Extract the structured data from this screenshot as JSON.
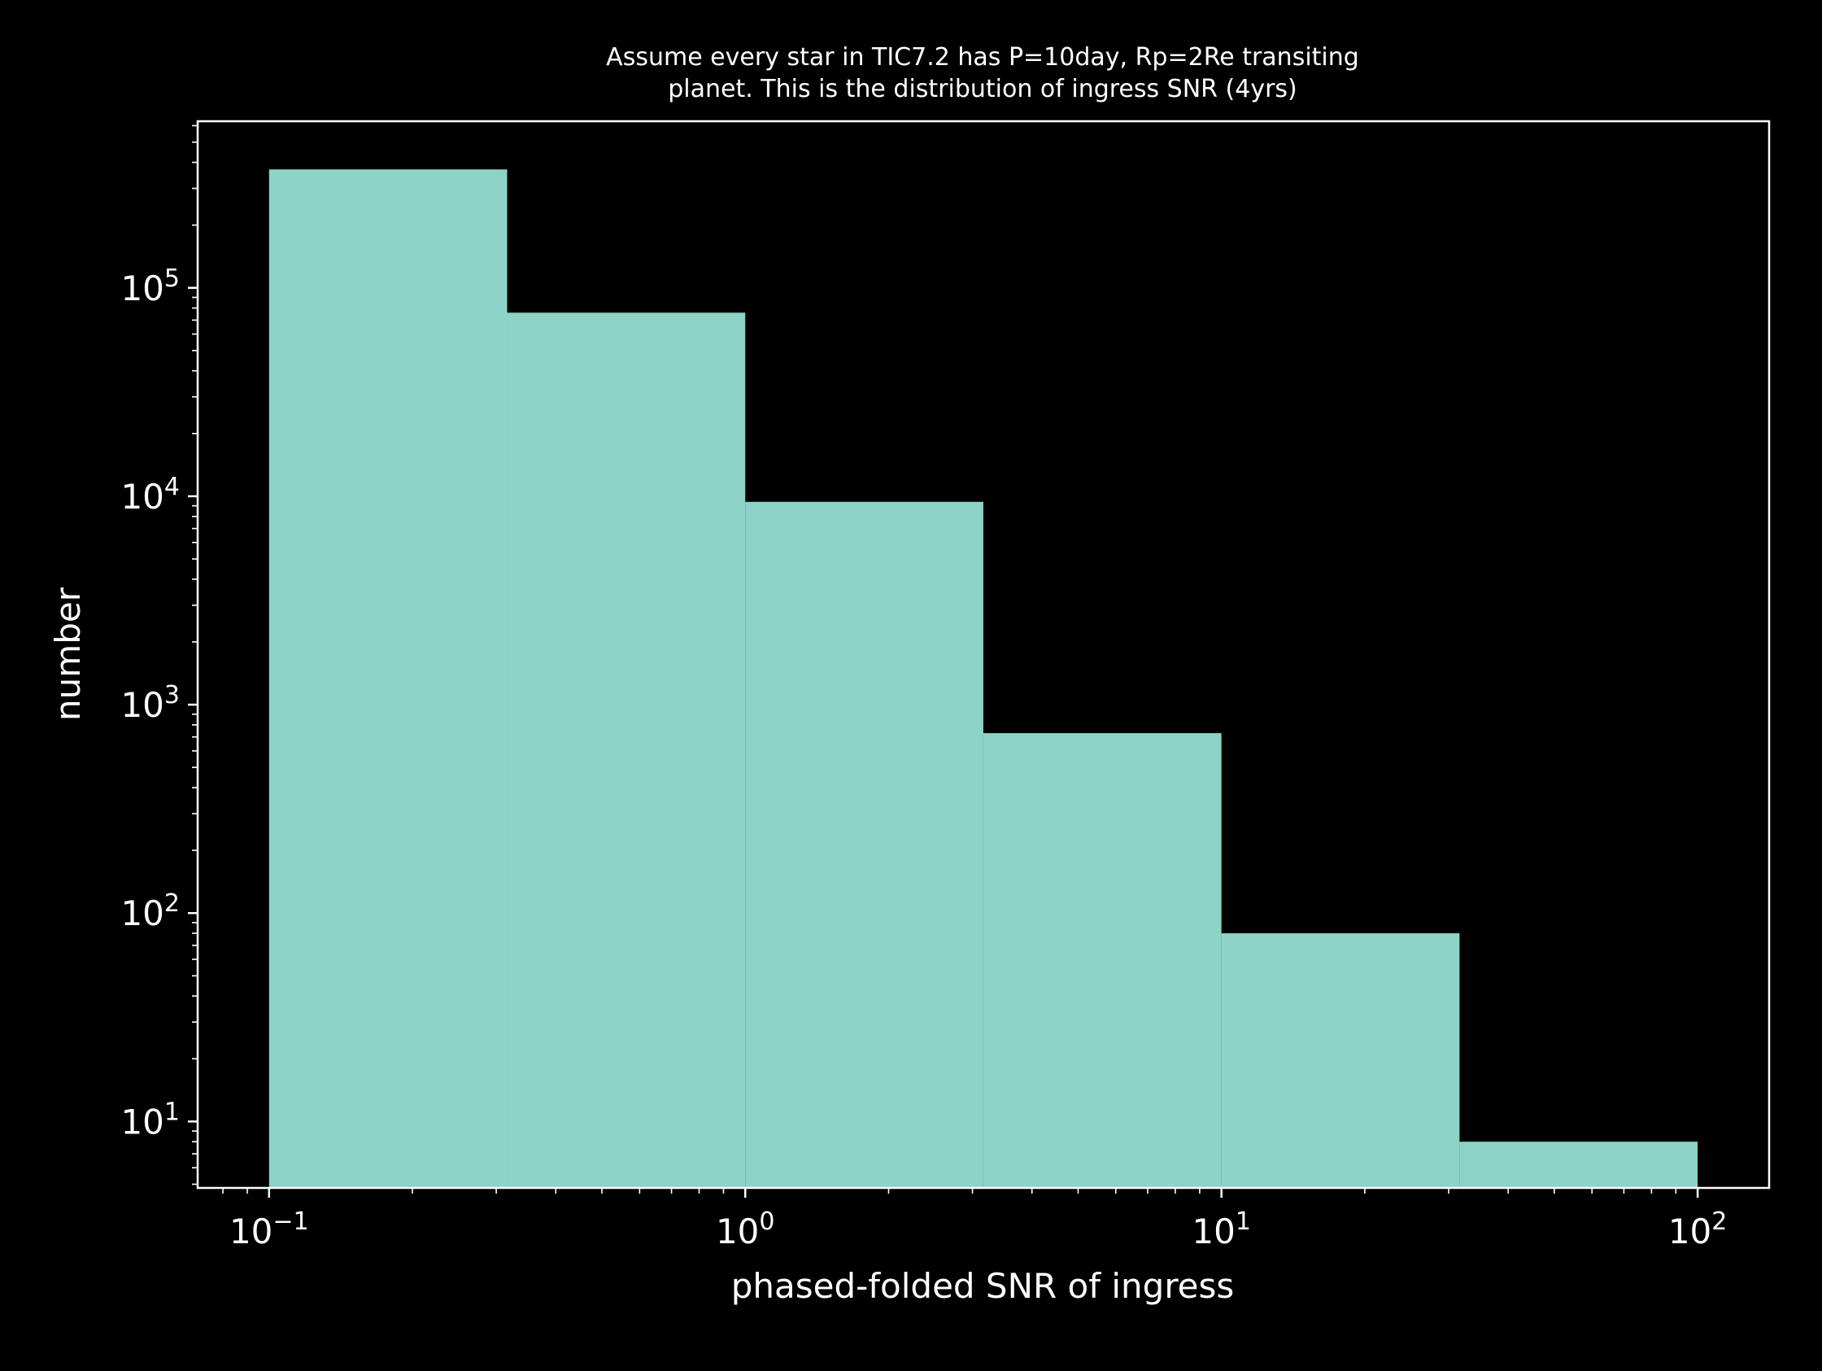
{
  "chart_data": {
    "type": "bar",
    "title_lines": [
      "Assume every star in TIC7.2 has P=10day, Rp=2Re transiting",
      "planet. This is the distribution of ingress SNR (4yrs)"
    ],
    "xlabel": "phased-folded SNR of ingress",
    "ylabel": "number",
    "xscale": "log",
    "yscale": "log",
    "xlim": [
      0.0708,
      141.3
    ],
    "ylim": [
      4.8,
      630000
    ],
    "x_ticks": [
      {
        "value": 0.1,
        "base": "10",
        "exp": "−1"
      },
      {
        "value": 1,
        "base": "10",
        "exp": "0"
      },
      {
        "value": 10,
        "base": "10",
        "exp": "1"
      },
      {
        "value": 100,
        "base": "10",
        "exp": "2"
      }
    ],
    "y_ticks": [
      {
        "value": 10,
        "base": "10",
        "exp": "1"
      },
      {
        "value": 100,
        "base": "10",
        "exp": "2"
      },
      {
        "value": 1000,
        "base": "10",
        "exp": "3"
      },
      {
        "value": 10000,
        "base": "10",
        "exp": "4"
      },
      {
        "value": 100000,
        "base": "10",
        "exp": "5"
      }
    ],
    "bins": [
      {
        "x0": 0.1,
        "x1": 0.3162,
        "count": 370000
      },
      {
        "x0": 0.3162,
        "x1": 1.0,
        "count": 76000
      },
      {
        "x0": 1.0,
        "x1": 3.162,
        "count": 9400
      },
      {
        "x0": 3.162,
        "x1": 10.0,
        "count": 730
      },
      {
        "x0": 10.0,
        "x1": 31.62,
        "count": 80
      },
      {
        "x0": 31.62,
        "x1": 100.0,
        "count": 8
      }
    ],
    "colors": {
      "bar": "#8dd3c7",
      "background": "#000000",
      "axes": "#ffffff",
      "text": "#ffffff"
    },
    "grid": false
  }
}
